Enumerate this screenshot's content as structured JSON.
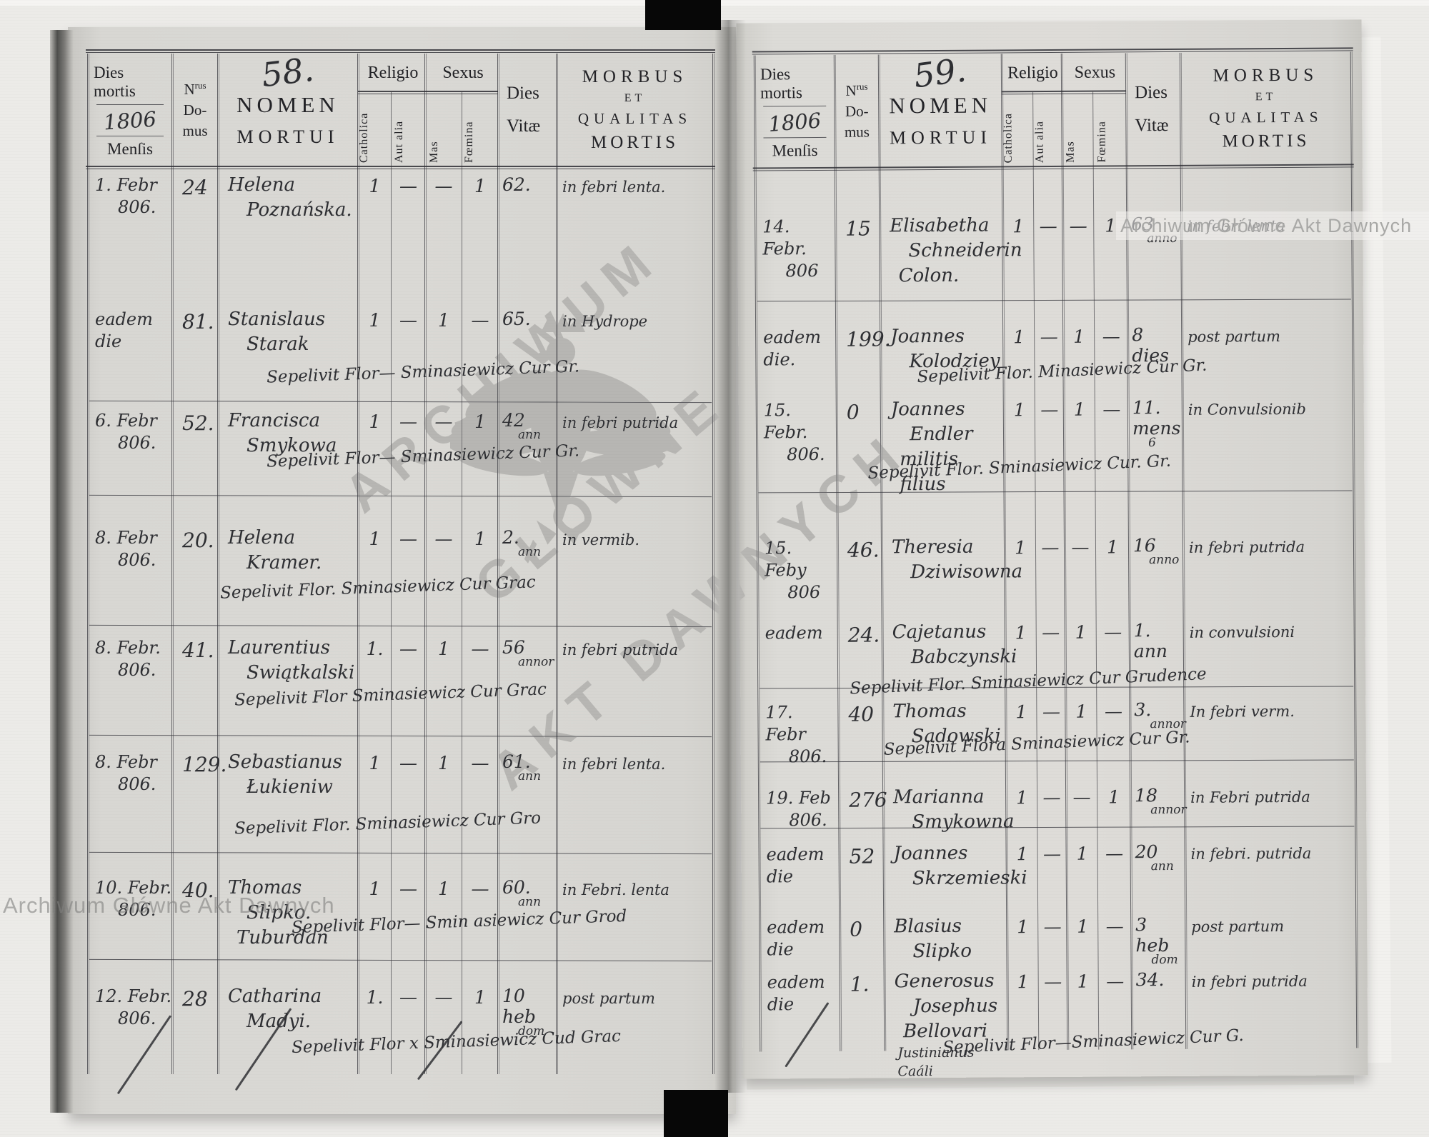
{
  "watermarks": {
    "top_right": "Archiwum Główne Akt Dawnych",
    "bottom_left": "Archiwum Główne Akt Dawnych",
    "center_line1": "ARCHIWUM",
    "center_line2": "GŁÓWNE",
    "center_line3": "AKT DAWNYCH"
  },
  "pages": [
    {
      "header": {
        "dies_mortis": "Dies mortis",
        "year": "1806",
        "mensis": "Menſis",
        "nrus_n": "N",
        "nrus_sup": "rus",
        "domus": "Do-",
        "mus": "mus",
        "page_number": "58.",
        "nomen": "NOMEN",
        "mortui": "MORTUI",
        "religio": "Religio",
        "sexus": "Sexus",
        "catholica": "Catholica",
        "aut_alia": "Aut alia",
        "mas": "Mas",
        "foemina": "Fœmina",
        "dies": "Dies",
        "vitae": "Vitæ",
        "morbus_line1": "MORBUS",
        "morbus_line2": "ET",
        "morbus_line3": "QUALITAS",
        "morbus_line4": "MORTIS"
      },
      "entries": [
        {
          "date1": "1. Febr",
          "date2": "806.",
          "house_no": "24",
          "name_lines": [
            "Helena",
            "Poznańska."
          ],
          "catholica": "1",
          "aut_alia": "—",
          "mas": "—",
          "foemina": "1",
          "vitae": "62.",
          "morbus": "in febri lenta."
        },
        {
          "date1": "eadem die",
          "house_no": "81.",
          "name_lines": [
            "Stanislaus",
            "Starak"
          ],
          "catholica": "1",
          "aut_alia": "—",
          "mas": "1",
          "foemina": "—",
          "vitae": "65.",
          "morbus": "in Hydrope",
          "note": "Sepelivit Flor— Sminasiewicz Cur Gr."
        },
        {
          "date1": "6. Febr",
          "date2": "806.",
          "house_no": "52.",
          "name_lines": [
            "Francisca",
            "Smykowa"
          ],
          "catholica": "1",
          "aut_alia": "—",
          "mas": "—",
          "foemina": "1",
          "vitae": "42",
          "vitae_sub": "ann",
          "morbus": "in febri putrida",
          "note": "Sepelivit Flor— Sminasiewicz Cur Gr."
        },
        {
          "date1": "8. Febr",
          "date2": "806.",
          "house_no": "20.",
          "name_lines": [
            "Helena",
            "Kramer."
          ],
          "catholica": "1",
          "aut_alia": "—",
          "mas": "—",
          "foemina": "1",
          "vitae": "2.",
          "vitae_sub": "ann",
          "morbus": "in vermib.",
          "note": "Sepelivit Flor. Sminasiewicz Cur Grac"
        },
        {
          "date1": "8. Febr.",
          "date2": "806.",
          "house_no": "41.",
          "name_lines": [
            "Laurentius",
            "Swiątkalski"
          ],
          "catholica": "1.",
          "aut_alia": "—",
          "mas": "1",
          "foemina": "—",
          "vitae": "56",
          "vitae_sub": "annor",
          "morbus": "in febri putrida",
          "note": "Sepelivit Flor Sminasiewicz Cur Grac"
        },
        {
          "date1": "8. Febr",
          "date2": "806.",
          "house_no": "129.",
          "name_lines": [
            "Sebastianus",
            "Łukieniw"
          ],
          "catholica": "1",
          "aut_alia": "—",
          "mas": "1",
          "foemina": "—",
          "vitae": "61.",
          "vitae_sub": "ann",
          "morbus": "in febri lenta.",
          "note": "Sepelivit Flor. Sminasiewicz Cur Gro"
        },
        {
          "date1": "10. Febr.",
          "date2": "806.",
          "house_no": "40.",
          "name_lines": [
            "Thomas",
            "Slipko.",
            "Tuburdan"
          ],
          "catholica": "1",
          "aut_alia": "—",
          "mas": "1",
          "foemina": "—",
          "vitae": "60.",
          "vitae_sub": "ann",
          "morbus": "in Febri. lenta",
          "note": "Sepelivit Flor— Smin asiewicz Cur Grod"
        },
        {
          "date1": "12. Febr.",
          "date2": "806.",
          "house_no": "28",
          "name_lines": [
            "Catharina",
            "Madyi."
          ],
          "catholica": "1.",
          "aut_alia": "—",
          "mas": "—",
          "foemina": "1",
          "vitae": "10 heb",
          "vitae_sub": "dom",
          "morbus": "post partum",
          "note": "Sepelivit Flor x Sminasiewicz Cud Grac"
        }
      ]
    },
    {
      "header": {
        "dies_mortis": "Dies mortis",
        "year": "1806",
        "mensis": "Menſis",
        "nrus_n": "N",
        "nrus_sup": "rus",
        "domus": "Do-",
        "mus": "mus",
        "page_number": "59.",
        "nomen": "NOMEN",
        "mortui": "MORTUI",
        "religio": "Religio",
        "sexus": "Sexus",
        "catholica": "Catholica",
        "aut_alia": "Aut alia",
        "mas": "Mas",
        "foemina": "Fœmina",
        "dies": "Dies",
        "vitae": "Vitæ",
        "morbus_line1": "MORBUS",
        "morbus_line2": "ET",
        "morbus_line3": "QUALITAS",
        "morbus_line4": "MORTIS"
      },
      "entries": [
        {
          "date1": "14. Febr.",
          "date2": "806",
          "house_no": "15",
          "name_lines": [
            "Elisabetha",
            "Schneiderin",
            "Colon."
          ],
          "catholica": "1",
          "aut_alia": "—",
          "mas": "—",
          "foemina": "1",
          "vitae": "63",
          "vitae_sub": "anno",
          "morbus": "in febri lenta"
        },
        {
          "date1": "eadem die.",
          "house_no": "199.",
          "name_lines": [
            "Joannes",
            "Kolodziey"
          ],
          "catholica": "1",
          "aut_alia": "—",
          "mas": "1",
          "foemina": "—",
          "vitae": "8 dies",
          "morbus": "post partum",
          "note": "Sepelivit Flor. Minasiewicz Cur Gr."
        },
        {
          "date1": "15. Febr.",
          "date2": "806.",
          "house_no": "0",
          "name_lines": [
            "Joannes",
            "Endler",
            "militis filius"
          ],
          "catholica": "1",
          "aut_alia": "—",
          "mas": "1",
          "foemina": "—",
          "vitae": "11. mens",
          "vitae_sub": "6",
          "morbus": "in Convulsionib",
          "note": "Sepelivit Flor. Sminasiewicz Cur. Gr."
        },
        {
          "date1": "15. Feby",
          "date2": "806",
          "house_no": "46.",
          "name_lines": [
            "Theresia",
            "Dziwisowna"
          ],
          "catholica": "1",
          "aut_alia": "—",
          "mas": "—",
          "foemina": "1",
          "vitae": "16",
          "vitae_sub": "anno",
          "morbus": "in febri putrida"
        },
        {
          "date1": "eadem",
          "house_no": "24.",
          "name_lines": [
            "Cajetanus",
            "Babczynski"
          ],
          "catholica": "1",
          "aut_alia": "—",
          "mas": "1",
          "foemina": "—",
          "vitae": "1. ann",
          "morbus": "in convulsioni",
          "note": "Sepelivit Flor. Sminasiewicz Cur Grudence"
        },
        {
          "date1": "17. Febr",
          "date2": "806.",
          "house_no": "40",
          "name_lines": [
            "Thomas",
            "Sadowski"
          ],
          "catholica": "1",
          "aut_alia": "—",
          "mas": "1",
          "foemina": "—",
          "vitae": "3.",
          "vitae_sub": "annor",
          "morbus": "In febri verm.",
          "note": "Sepelivit Flora Sminasiewicz Cur Gr."
        },
        {
          "date1": "19. Feb",
          "date2": "806.",
          "house_no": "276",
          "name_lines": [
            "Marianna",
            "Smykowna"
          ],
          "catholica": "1",
          "aut_alia": "—",
          "mas": "—",
          "foemina": "1",
          "vitae": "18",
          "vitae_sub": "annor",
          "morbus": "in Febri putrida"
        },
        {
          "date1": "eadem die",
          "house_no": "52",
          "name_lines": [
            "Joannes",
            "Skrzemieski"
          ],
          "catholica": "1",
          "aut_alia": "—",
          "mas": "1",
          "foemina": "—",
          "vitae": "20",
          "vitae_sub": "ann",
          "morbus": "in febri. putrida"
        },
        {
          "date1": "eadem die",
          "house_no": "0",
          "name_lines": [
            "Blasius",
            "Slipko"
          ],
          "catholica": "1",
          "aut_alia": "—",
          "mas": "1",
          "foemina": "—",
          "vitae": "3 heb",
          "vitae_sub": "dom",
          "morbus": "post partum"
        },
        {
          "date1": "eadem die",
          "house_no": "1.",
          "name_lines": [
            "Generosus",
            "Josephus",
            "Bellovari",
            "Justinianus Caáli"
          ],
          "catholica": "1",
          "aut_alia": "—",
          "mas": "1",
          "foemina": "—",
          "vitae": "34.",
          "morbus": "in febri putrida",
          "note": "Sepelivit Flor—Sminasiewicz Cur G."
        }
      ]
    }
  ]
}
